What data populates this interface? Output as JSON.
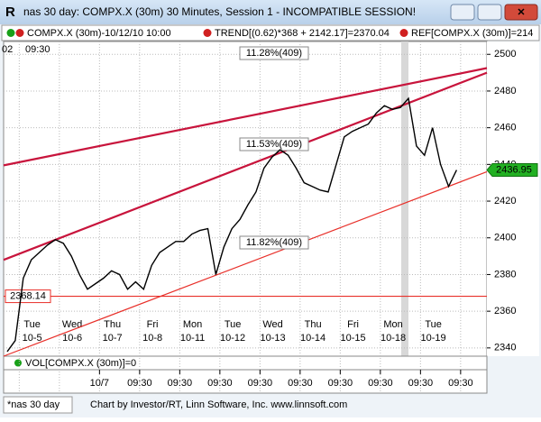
{
  "window": {
    "title": "nas 30 day: COMPX.X (30m) 30 Minutes, Session 1 - INCOMPATIBLE SESSION!",
    "legend": [
      "COMPX.X (30m)-10/12/10 10:00",
      "TREND[(0.62)*368 + 2142.17]=2370.04",
      "REF[COMPX.X (30m)]=214"
    ],
    "corner_labels": [
      "02",
      "09:30"
    ],
    "volume_legend": "VOL[COMPX.X (30m)]=0",
    "time_labels": [
      "10/7",
      "09:30",
      "09:30",
      "09:30",
      "09:30",
      "09:30",
      "09:30",
      "09:30",
      "09:30",
      "09:30"
    ],
    "tab": "*nas 30 day",
    "status": "Chart by Investor/RT, Linn Software, Inc. www.linnsoft.com"
  },
  "chart_data": {
    "type": "line",
    "categories": [
      null,
      null,
      null,
      null,
      "Tue",
      null,
      null,
      null,
      null,
      "Wed",
      null,
      null,
      null,
      null,
      "Thu",
      null,
      null,
      null,
      null,
      "Fri",
      null,
      null,
      null,
      null,
      "Mon",
      null,
      null,
      null,
      null,
      "Tue",
      null,
      null,
      null,
      null,
      "Wed",
      null,
      null,
      null,
      null,
      "Thu",
      null,
      null,
      null,
      null,
      "Fri",
      null,
      null,
      null,
      null,
      "Mon",
      null,
      null,
      null,
      null,
      "Tue",
      null,
      null
    ],
    "category_dates": [
      null,
      null,
      null,
      null,
      "10-5",
      null,
      null,
      null,
      null,
      "10-6",
      null,
      null,
      null,
      null,
      "10-7",
      null,
      null,
      null,
      null,
      "10-8",
      null,
      null,
      null,
      null,
      "10-11",
      null,
      null,
      null,
      null,
      "10-12",
      null,
      null,
      null,
      null,
      "10-13",
      null,
      null,
      null,
      null,
      "10-14",
      null,
      null,
      null,
      null,
      "10-15",
      null,
      null,
      null,
      null,
      "10-18",
      null,
      null,
      null,
      null,
      "10-19",
      null,
      null
    ],
    "series": [
      {
        "name": "COMPX.X (30m)",
        "color": "#000000",
        "values": [
          2338,
          2344,
          2378,
          2388,
          2392,
          2396,
          2399,
          2397,
          2390,
          2380,
          2372,
          2375,
          2378,
          2382,
          2380,
          2372,
          2376,
          2372,
          2385,
          2392,
          2395,
          2398,
          2398,
          2402,
          2404,
          2405,
          2380,
          2395,
          2405,
          2410,
          2418,
          2425,
          2438,
          2444,
          2448,
          2445,
          2438,
          2430,
          2428,
          2426,
          2425,
          2440,
          2455,
          2458,
          2460,
          2462,
          2468,
          2472,
          2470,
          2471,
          2476,
          2450,
          2445,
          2460,
          2440,
          2428,
          2436.95
        ]
      }
    ],
    "channel_lines": [
      {
        "label": "11.28%(409)",
        "start": 2439.5,
        "end": 2492.5,
        "color": "#c8143c"
      },
      {
        "label": "11.53%(409)",
        "start": 2388,
        "end": 2490,
        "color": "#c8143c"
      },
      {
        "label": "11.82%(409)",
        "start": 2335.5,
        "end": 2436,
        "color": "#e8302a"
      }
    ],
    "hline": {
      "value": 2368.14,
      "label": "2368.14",
      "color": "#e8302a"
    },
    "last_price": {
      "value": 2436.95,
      "label": "2436.95"
    },
    "ylim": [
      2335.5,
      2507
    ],
    "yticks": [
      2340,
      2360,
      2380,
      2400,
      2420,
      2440,
      2460,
      2480,
      2500
    ],
    "grid": true
  }
}
